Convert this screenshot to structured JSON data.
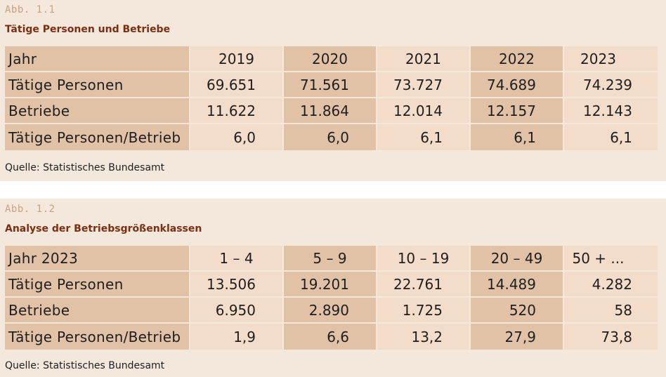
{
  "fig1": {
    "number": "Abb. 1.1",
    "title": "Tätige Personen und Betriebe",
    "header": [
      "Jahr",
      "2019",
      "2020",
      "2021",
      "2022",
      "2023"
    ],
    "rows": [
      [
        "Tätige Personen",
        "69.651",
        "71.561",
        "73.727",
        "74.689",
        "74.239"
      ],
      [
        "Betriebe",
        "11.622",
        "11.864",
        "12.014",
        "12.157",
        "12.143"
      ],
      [
        "Tätige Personen/Betrieb",
        "6,0",
        "6,0",
        "6,1",
        "6,1",
        "6,1"
      ]
    ],
    "source": "Quelle: Statistisches Bundesamt"
  },
  "fig2": {
    "number": "Abb. 1.2",
    "title": "Analyse der Betriebsgrößenklassen",
    "header": [
      "Jahr 2023",
      "1 – 4",
      "5 – 9",
      "10 – 19",
      "20 – 49",
      "50 + ..."
    ],
    "rows": [
      [
        "Tätige Personen",
        "13.506",
        "19.201",
        "22.761",
        "14.489",
        "4.282"
      ],
      [
        "Betriebe",
        "6.950",
        "2.890",
        "1.725",
        "520",
        "58"
      ],
      [
        "Tätige Personen/Betrieb",
        "1,9",
        "6,6",
        "13,2",
        "27,9",
        "73,8"
      ]
    ],
    "source": "Quelle: Statistisches Bundesamt"
  }
}
